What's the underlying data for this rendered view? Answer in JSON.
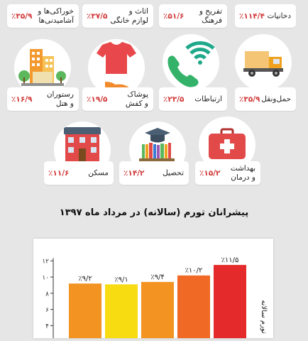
{
  "categories": [
    {
      "id": "tobacco",
      "label": "دخانیات",
      "value": "٪۱۱۴/۴"
    },
    {
      "id": "leisure",
      "label": "تفریح و\nفرهنگ",
      "value": "٪۵۱/۶"
    },
    {
      "id": "furniture",
      "label": "اثاث و\nلوازم خانگی",
      "value": "٪۳۷/۵"
    },
    {
      "id": "food",
      "label": "خوراکی‌ها و\nآشامیدنی‌ها",
      "value": "٪۳۵/۹"
    },
    {
      "id": "transport",
      "label": "حمل‌ونقل",
      "value": "٪۳۵/۹"
    },
    {
      "id": "comm",
      "label": "ارتباطات",
      "value": "٪۲۳/۵"
    },
    {
      "id": "clothing",
      "label": "پوشاک\nو کفش",
      "value": "٪۱۹/۵"
    },
    {
      "id": "restaurant",
      "label": "رستوران\nو هتل",
      "value": "٪۱۶/۹"
    },
    {
      "id": "health",
      "label": "بهداشت\nو درمان",
      "value": "٪۱۵/۲"
    },
    {
      "id": "education",
      "label": "تحصیل",
      "value": "٪۱۴/۲"
    },
    {
      "id": "housing",
      "label": "مسکن",
      "value": "٪۱۱/۶"
    }
  ],
  "icons": [
    "truck-icon",
    "phone-wifi-icon",
    "clothing-icon",
    "buildings-icon",
    "first-aid-icon",
    "books-icon",
    "house-icon"
  ],
  "chart_title": "پیشرانان تورم (سالانه) در مرداد ماه ۱۳۹۷",
  "chart_data": {
    "type": "bar",
    "title": "پیشرانان تورم (سالانه) در مرداد ماه ۱۳۹۷",
    "ylabel": "تورم سالانه",
    "ylim": [
      0,
      12
    ],
    "yticks": [
      {
        "v": 4,
        "label": "۴"
      },
      {
        "v": 6,
        "label": "۶"
      },
      {
        "v": 8,
        "label": "۸"
      },
      {
        "v": 10,
        "label": "۱۰"
      },
      {
        "v": 12,
        "label": "۱۲"
      }
    ],
    "bars": [
      {
        "value": 9.2,
        "label": "٪۹/۲",
        "color": "#f39322"
      },
      {
        "value": 9.1,
        "label": "٪۹/۱",
        "color": "#f7dc12"
      },
      {
        "value": 9.4,
        "label": "٪۹/۴",
        "color": "#f39322"
      },
      {
        "value": 10.2,
        "label": "٪۱۰/۲",
        "color": "#f06a25"
      },
      {
        "value": 11.5,
        "label": "٪۱۱/۵",
        "color": "#e42a2a"
      }
    ]
  }
}
